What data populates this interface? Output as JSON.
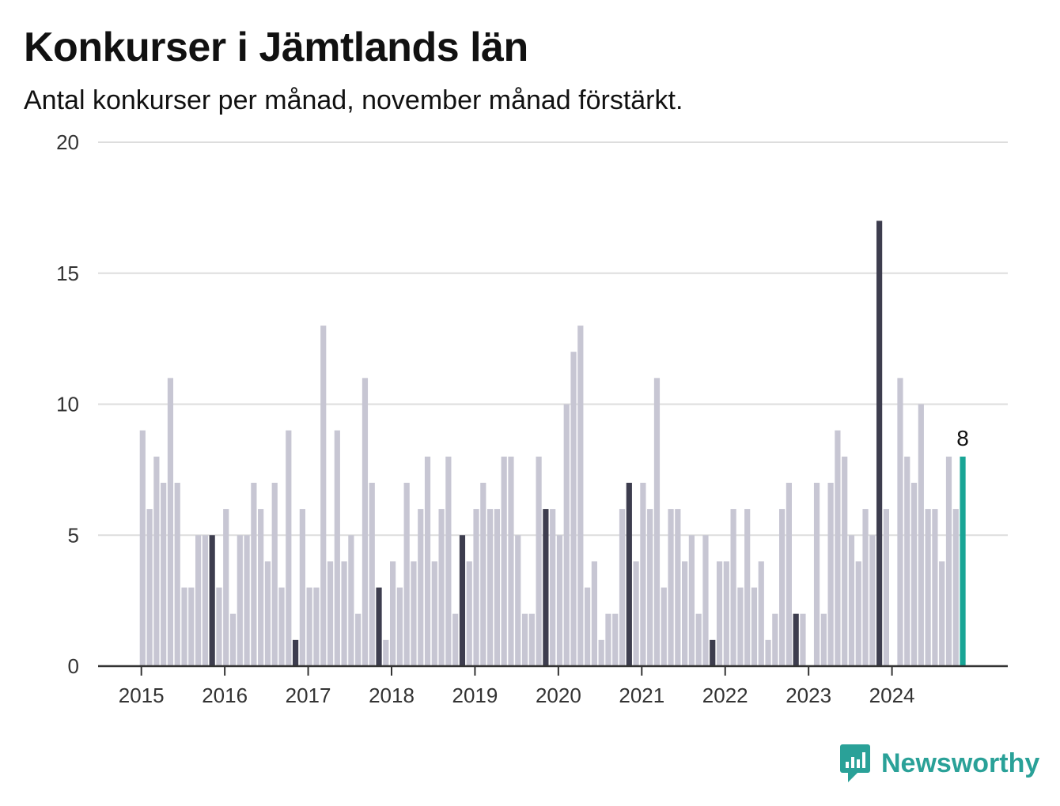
{
  "title": "Konkurser i Jämtlands län",
  "subtitle": "Antal konkurser per månad, november månad förstärkt.",
  "brand": {
    "name": "Newsworthy",
    "icon": "newsworthy-logo-icon"
  },
  "colors": {
    "bar": "#c7c6d3",
    "highlight": "#3d3d4e",
    "latest": "#19a596",
    "grid": "#dddddd",
    "axis": "#333333"
  },
  "chart_data": {
    "type": "bar",
    "title": "Konkurser i Jämtlands län",
    "subtitle": "Antal konkurser per månad, november månad förstärkt.",
    "xlabel": "",
    "ylabel": "",
    "ylim": [
      0,
      20
    ],
    "yticks": [
      0,
      5,
      10,
      15,
      20
    ],
    "xticks": [
      "2015",
      "2016",
      "2017",
      "2018",
      "2019",
      "2020",
      "2021",
      "2022",
      "2023",
      "2024"
    ],
    "start": "2015-01",
    "end": "2024-11",
    "highlight": "november",
    "grid": true,
    "series": [
      {
        "values": [
          9,
          6,
          8,
          7,
          11,
          7,
          3,
          3,
          5,
          5,
          5,
          3,
          6,
          2,
          5,
          5,
          7,
          6,
          4,
          7,
          3,
          9,
          1,
          6,
          3,
          3,
          13,
          4,
          9,
          4,
          5,
          2,
          11,
          7,
          3,
          1,
          4,
          3,
          7,
          4,
          6,
          8,
          4,
          6,
          8,
          2,
          5,
          4,
          6,
          7,
          6,
          6,
          8,
          8,
          5,
          2,
          2,
          8,
          6,
          6,
          5,
          10,
          12,
          13,
          3,
          4,
          1,
          2,
          2,
          6,
          7,
          4,
          7,
          6,
          11,
          3,
          6,
          6,
          4,
          5,
          2,
          5,
          1,
          4,
          4,
          6,
          3,
          6,
          3,
          4,
          1,
          2,
          6,
          7,
          2,
          2,
          0,
          7,
          2,
          7,
          9,
          8,
          5,
          4,
          6,
          5,
          17,
          6,
          0,
          11,
          8,
          7,
          10,
          6,
          6,
          4,
          8,
          6,
          8
        ]
      }
    ],
    "data_labels": [
      {
        "index": 118,
        "text": "8"
      }
    ]
  }
}
